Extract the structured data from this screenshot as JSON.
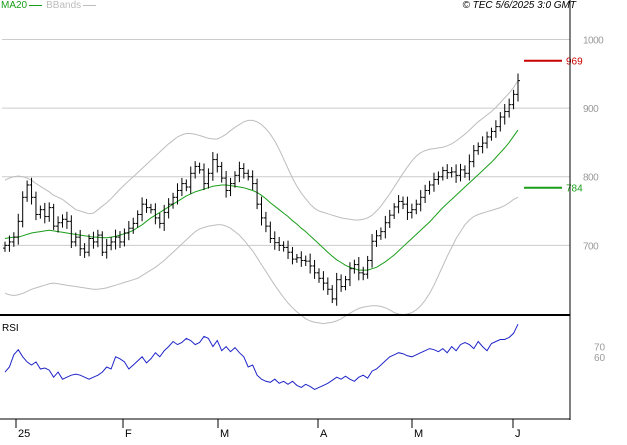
{
  "header": {
    "legend_ma": "MA20",
    "legend_bb": "BBands",
    "source": "© TEC 5/6/2025 3:0 GMT"
  },
  "colors": {
    "candle": "#000000",
    "ma": "#1a9e1a",
    "bbands": "#bdbdbd",
    "rsi": "#1f24c8",
    "grid": "#cccccc",
    "resistance": "#c80000",
    "support": "#1a9e1a",
    "axis_text": "#9a9a9a"
  },
  "chart_data": [
    {
      "type": "candlestick",
      "title": "",
      "xlabel": "",
      "ylabel": "",
      "x_ticks": [
        "25",
        "F",
        "M",
        "A",
        "M",
        "J"
      ],
      "y_ticks": [
        700,
        800,
        900,
        1000
      ],
      "ylim": [
        600,
        1040
      ],
      "grid": true,
      "legend": [
        "MA20",
        "BBands"
      ],
      "levels": [
        {
          "label": "969",
          "value": 969,
          "color": "#c80000"
        },
        {
          "label": "784",
          "value": 784,
          "color": "#1a9e1a"
        }
      ],
      "series": [
        {
          "name": "price_close",
          "values": [
            700,
            705,
            712,
            735,
            770,
            788,
            770,
            745,
            752,
            742,
            755,
            728,
            733,
            738,
            735,
            705,
            712,
            695,
            690,
            710,
            705,
            715,
            690,
            700,
            705,
            712,
            705,
            718,
            725,
            732,
            745,
            760,
            755,
            752,
            740,
            732,
            748,
            760,
            770,
            780,
            790,
            785,
            805,
            815,
            810,
            790,
            805,
            825,
            815,
            798,
            780,
            790,
            802,
            812,
            805,
            800,
            790,
            760,
            740,
            728,
            710,
            704,
            700,
            697,
            690,
            680,
            682,
            678,
            677,
            670,
            660,
            652,
            645,
            636,
            622,
            650,
            640,
            650,
            666,
            672,
            660,
            658,
            678,
            706,
            714,
            720,
            733,
            744,
            756,
            764,
            760,
            748,
            752,
            760,
            770,
            780,
            788,
            796,
            800,
            809,
            806,
            807,
            802,
            810,
            805,
            822,
            838,
            844,
            849,
            858,
            866,
            873,
            887,
            895,
            905,
            920,
            940
          ]
        },
        {
          "name": "MA20",
          "values": [
            710,
            711,
            712,
            712,
            714,
            716,
            718,
            719,
            720,
            721,
            722,
            721,
            720,
            719,
            718,
            717,
            716,
            715,
            714,
            713,
            712,
            712,
            711,
            711,
            712,
            713,
            715,
            717,
            719,
            722,
            726,
            730,
            735,
            740,
            744,
            748,
            752,
            756,
            760,
            764,
            768,
            772,
            775,
            778,
            780,
            782,
            784,
            786,
            787,
            788,
            788,
            787,
            786,
            785,
            784,
            782,
            780,
            777,
            773,
            768,
            762,
            757,
            752,
            747,
            742,
            736,
            731,
            725,
            720,
            714,
            708,
            702,
            696,
            690,
            684,
            679,
            675,
            671,
            668,
            666,
            664,
            664,
            664,
            666,
            668,
            672,
            676,
            681,
            686,
            692,
            698,
            704,
            710,
            716,
            722,
            728,
            734,
            741,
            748,
            755,
            761,
            767,
            773,
            779,
            785,
            791,
            797,
            803,
            809,
            815,
            821,
            828,
            835,
            842,
            850,
            859,
            868
          ]
        },
        {
          "name": "BBands",
          "upper": [
            795,
            798,
            800,
            801,
            800,
            798,
            795,
            790,
            786,
            782,
            778,
            773,
            770,
            767,
            762,
            757,
            752,
            750,
            748,
            746,
            747,
            752,
            757,
            762,
            768,
            775,
            782,
            788,
            794,
            800,
            806,
            812,
            818,
            824,
            830,
            836,
            842,
            848,
            853,
            858,
            861,
            863,
            863,
            862,
            860,
            858,
            856,
            855,
            855,
            858,
            862,
            867,
            872,
            876,
            880,
            882,
            882,
            880,
            876,
            870,
            862,
            852,
            840,
            826,
            812,
            798,
            786,
            776,
            768,
            760,
            754,
            750,
            748,
            746,
            744,
            742,
            740,
            739,
            738,
            737,
            737,
            738,
            740,
            744,
            750,
            757,
            766,
            775,
            785,
            795,
            805,
            814,
            823,
            830,
            835,
            838,
            840,
            841,
            842,
            843,
            845,
            848,
            852,
            857,
            862,
            868,
            874,
            880,
            885,
            890,
            895,
            901,
            908,
            915,
            922,
            930,
            940
          ],
          "lower": [
            630,
            628,
            627,
            628,
            630,
            633,
            636,
            638,
            640,
            642,
            644,
            645,
            644,
            643,
            642,
            641,
            640,
            639,
            638,
            637,
            636,
            636,
            637,
            638,
            640,
            642,
            644,
            646,
            648,
            650,
            652,
            656,
            660,
            664,
            668,
            673,
            678,
            684,
            690,
            696,
            702,
            708,
            714,
            720,
            724,
            726,
            728,
            729,
            730,
            730,
            728,
            725,
            720,
            715,
            708,
            700,
            692,
            682,
            672,
            662,
            652,
            642,
            633,
            624,
            616,
            609,
            603,
            598,
            593,
            590,
            588,
            587,
            586,
            587,
            588,
            590,
            593,
            597,
            601,
            605,
            608,
            610,
            611,
            612,
            612,
            611,
            609,
            606,
            602,
            600,
            599,
            600,
            602,
            606,
            612,
            620,
            630,
            642,
            656,
            670,
            684,
            697,
            710,
            720,
            730,
            737,
            742,
            745,
            747,
            749,
            751,
            753,
            755,
            758,
            762,
            767,
            770
          ]
        },
        {
          "name": "RSI",
          "values": [
            45,
            50,
            62,
            67,
            60,
            55,
            52,
            55,
            48,
            49,
            47,
            40,
            45,
            38,
            40,
            42,
            43,
            42,
            40,
            38,
            40,
            42,
            45,
            50,
            48,
            60,
            58,
            55,
            48,
            52,
            56,
            60,
            54,
            58,
            64,
            60,
            66,
            70,
            75,
            72,
            74,
            78,
            76,
            72,
            74,
            80,
            78,
            70,
            76,
            66,
            70,
            65,
            69,
            64,
            60,
            50,
            52,
            42,
            38,
            36,
            35,
            38,
            34,
            36,
            33,
            36,
            32,
            30,
            33,
            31,
            28,
            30,
            32,
            34,
            37,
            40,
            38,
            41,
            38,
            36,
            40,
            42,
            39,
            46,
            48,
            52,
            56,
            60,
            62,
            64,
            63,
            61,
            60,
            62,
            64,
            66,
            68,
            67,
            65,
            68,
            64,
            70,
            66,
            72,
            74,
            72,
            68,
            75,
            70,
            66,
            73,
            75,
            77,
            77,
            79,
            83,
            92
          ]
        }
      ]
    },
    {
      "type": "line",
      "title": "RSI",
      "xlabel": "",
      "ylabel": "",
      "y_ticks": [
        70,
        60
      ],
      "ylim": [
        0,
        100
      ]
    }
  ]
}
